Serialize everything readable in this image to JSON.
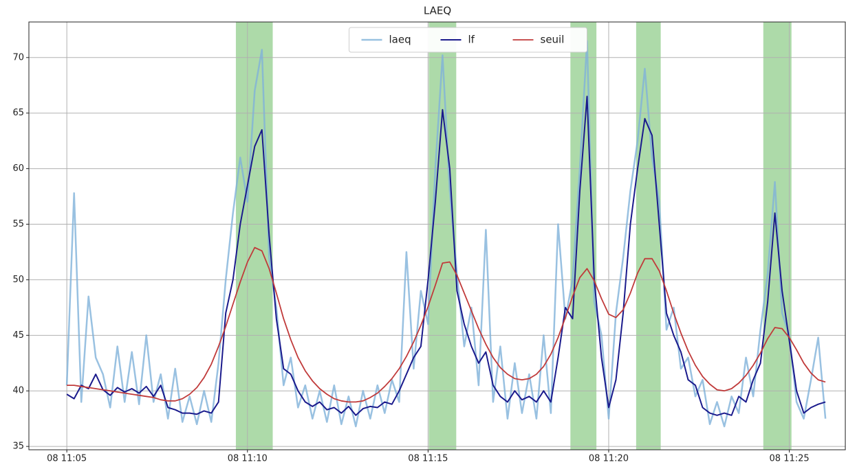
{
  "chart_data": {
    "type": "line",
    "title": "LAEQ",
    "x": [
      5.0,
      5.2,
      5.4,
      5.6,
      5.8,
      6.0,
      6.2,
      6.4,
      6.6,
      6.8,
      7.0,
      7.2,
      7.4,
      7.6,
      7.8,
      8.0,
      8.2,
      8.4,
      8.6,
      8.8,
      9.0,
      9.2,
      9.4,
      9.6,
      9.8,
      10.0,
      10.2,
      10.4,
      10.6,
      10.8,
      11.0,
      11.2,
      11.4,
      11.6,
      11.8,
      12.0,
      12.2,
      12.4,
      12.6,
      12.8,
      13.0,
      13.2,
      13.4,
      13.6,
      13.8,
      14.0,
      14.2,
      14.4,
      14.6,
      14.8,
      15.0,
      15.2,
      15.4,
      15.6,
      15.8,
      16.0,
      16.2,
      16.4,
      16.6,
      16.8,
      17.0,
      17.2,
      17.4,
      17.6,
      17.8,
      18.0,
      18.2,
      18.4,
      18.6,
      18.8,
      19.0,
      19.2,
      19.4,
      19.6,
      19.8,
      20.0,
      20.2,
      20.4,
      20.6,
      20.8,
      21.0,
      21.2,
      21.4,
      21.6,
      21.8,
      22.0,
      22.2,
      22.4,
      22.6,
      22.8,
      23.0,
      23.2,
      23.4,
      23.6,
      23.8,
      24.0,
      24.2,
      24.4,
      24.6,
      24.8,
      25.0,
      25.2,
      25.4,
      25.6,
      25.8,
      26.0
    ],
    "series": [
      {
        "name": "laeq",
        "color": "#7fb2d9",
        "values": [
          40.5,
          57.8,
          39.0,
          48.5,
          43.0,
          41.5,
          38.5,
          44.0,
          39.0,
          43.5,
          38.8,
          45.0,
          39.0,
          41.5,
          37.5,
          42.0,
          37.2,
          39.5,
          37.0,
          40.0,
          37.2,
          42.5,
          50.0,
          56.0,
          61.0,
          57.0,
          67.0,
          70.7,
          52.0,
          47.5,
          40.5,
          43.0,
          38.5,
          40.5,
          37.5,
          40.0,
          37.2,
          40.5,
          37.0,
          39.5,
          36.8,
          40.0,
          37.5,
          40.5,
          38.0,
          41.0,
          39.0,
          52.5,
          42.0,
          49.0,
          46.0,
          60.0,
          70.2,
          58.0,
          50.5,
          44.0,
          47.5,
          40.5,
          54.5,
          39.0,
          44.0,
          37.5,
          42.5,
          38.0,
          41.5,
          37.5,
          45.0,
          38.0,
          55.0,
          46.5,
          50.0,
          60.0,
          71.5,
          48.0,
          45.0,
          37.5,
          47.0,
          52.0,
          58.0,
          62.5,
          69.0,
          61.0,
          57.0,
          45.5,
          47.5,
          42.0,
          43.0,
          39.5,
          41.0,
          37.0,
          39.0,
          36.8,
          39.5,
          38.0,
          43.0,
          39.5,
          45.5,
          50.5,
          58.8,
          47.0,
          45.0,
          39.0,
          37.5,
          41.0,
          44.8,
          37.5
        ]
      },
      {
        "name": "lf",
        "color": "#1a1a8c",
        "values": [
          39.7,
          39.3,
          40.5,
          40.2,
          41.5,
          40.1,
          39.6,
          40.3,
          39.9,
          40.2,
          39.8,
          40.4,
          39.5,
          40.5,
          38.5,
          38.3,
          38.0,
          38.0,
          37.9,
          38.2,
          38.0,
          39.0,
          47.0,
          50.0,
          55.0,
          58.5,
          62.0,
          63.5,
          54.0,
          46.5,
          42.0,
          41.5,
          40.0,
          39.0,
          38.6,
          39.0,
          38.3,
          38.5,
          38.0,
          38.6,
          37.8,
          38.4,
          38.6,
          38.5,
          39.0,
          38.8,
          40.0,
          41.5,
          43.0,
          44.0,
          50.0,
          57.0,
          65.3,
          60.0,
          49.0,
          46.0,
          44.0,
          42.5,
          43.5,
          40.5,
          39.5,
          39.0,
          40.0,
          39.2,
          39.5,
          39.0,
          40.0,
          39.0,
          43.0,
          47.5,
          46.5,
          58.0,
          66.5,
          50.0,
          43.0,
          38.5,
          41.0,
          47.0,
          55.0,
          60.0,
          64.5,
          63.0,
          55.0,
          47.0,
          45.0,
          43.5,
          41.0,
          40.5,
          38.5,
          38.0,
          37.8,
          38.0,
          37.8,
          39.5,
          39.0,
          41.0,
          42.5,
          48.0,
          56.0,
          49.0,
          44.5,
          40.0,
          38.0,
          38.5,
          38.8,
          39.0
        ]
      },
      {
        "name": "seuil",
        "color": "#c03a3a",
        "values": [
          40.5,
          40.5,
          40.4,
          40.3,
          40.2,
          40.1,
          40.0,
          39.9,
          39.8,
          39.7,
          39.6,
          39.5,
          39.4,
          39.2,
          39.1,
          39.1,
          39.3,
          39.7,
          40.3,
          41.2,
          42.4,
          44.0,
          45.8,
          47.8,
          49.8,
          51.6,
          52.9,
          52.6,
          51.0,
          48.8,
          46.5,
          44.6,
          43.0,
          41.8,
          40.9,
          40.2,
          39.7,
          39.3,
          39.1,
          39.0,
          39.0,
          39.1,
          39.4,
          39.8,
          40.4,
          41.1,
          42.0,
          43.1,
          44.4,
          45.9,
          47.6,
          49.5,
          51.5,
          51.6,
          50.4,
          48.8,
          47.2,
          45.6,
          44.2,
          43.0,
          42.1,
          41.5,
          41.1,
          41.0,
          41.1,
          41.5,
          42.2,
          43.3,
          44.8,
          46.6,
          48.5,
          50.2,
          51.0,
          49.9,
          48.3,
          46.9,
          46.6,
          47.3,
          48.8,
          50.6,
          51.9,
          51.9,
          50.8,
          49.0,
          47.0,
          45.2,
          43.6,
          42.3,
          41.3,
          40.6,
          40.1,
          40.0,
          40.2,
          40.7,
          41.4,
          42.3,
          43.4,
          44.7,
          45.7,
          45.6,
          44.8,
          43.7,
          42.5,
          41.6,
          41.0,
          40.8
        ]
      }
    ],
    "spans": [
      [
        9.68,
        10.7
      ],
      [
        15.02,
        15.78
      ],
      [
        18.94,
        19.66
      ],
      [
        20.76,
        21.44
      ],
      [
        24.28,
        25.06
      ]
    ],
    "span_color": "#9fd49a",
    "xlim": [
      3.95,
      26.55
    ],
    "xticks": [
      {
        "value": 5,
        "label": "08 11:05"
      },
      {
        "value": 10,
        "label": "08 11:10"
      },
      {
        "value": 15,
        "label": "08 11:15"
      },
      {
        "value": 20,
        "label": "08 11:20"
      },
      {
        "value": 25,
        "label": "08 11:25"
      }
    ],
    "ylim": [
      34.7,
      73.2
    ],
    "yticks": [
      35,
      40,
      45,
      50,
      55,
      60,
      65,
      70
    ],
    "grid": true,
    "legend": "upper center"
  }
}
